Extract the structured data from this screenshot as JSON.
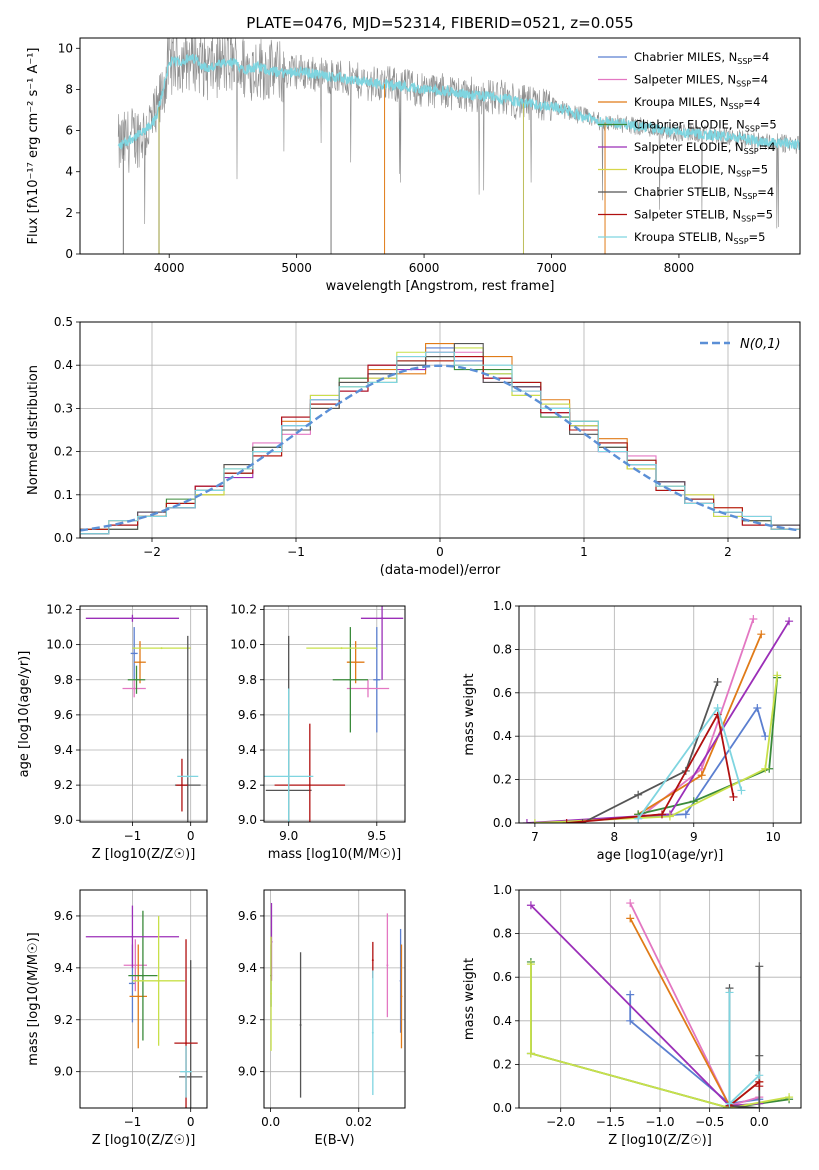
{
  "title": "PLATE=0476, MJD=52314, FIBERID=0521, z=0.055",
  "legend_entries": [
    {
      "label": "Chabrier MILES, N_SSP=4",
      "color": "#5b7fd0"
    },
    {
      "label": "Salpeter MILES, N_SSP=4",
      "color": "#e377c2"
    },
    {
      "label": "Kroupa MILES, N_SSP=4",
      "color": "#e07b18"
    },
    {
      "label": "Chabrier ELODIE, N_SSP=5",
      "color": "#3a8a3a"
    },
    {
      "label": "Salpeter ELODIE, N_SSP=4",
      "color": "#9b2fb8"
    },
    {
      "label": "Kroupa ELODIE, N_SSP=5",
      "color": "#d7d74a"
    },
    {
      "label": "Chabrier STELIB, N_SSP=4",
      "color": "#555555"
    },
    {
      "label": "Salpeter STELIB, N_SSP=5",
      "color": "#b01010"
    },
    {
      "label": "Kroupa STELIB, N_SSP=5",
      "color": "#7fd5e0"
    }
  ],
  "chart_data": [
    {
      "id": "spectrum",
      "type": "line",
      "title": "PLATE=0476, MJD=52314, FIBERID=0521, z=0.055",
      "xlabel": "wavelength [Angstrom, rest frame]",
      "ylabel": "Flux [fλ10⁻¹⁷ erg cm⁻² s⁻¹ A⁻¹]",
      "xlim": [
        3300,
        8950
      ],
      "ylim": [
        0,
        10.5
      ],
      "xticks": [
        4000,
        5000,
        6000,
        7000,
        8000
      ],
      "yticks": [
        0,
        2,
        4,
        6,
        8,
        10
      ],
      "data_color": "#8c8c8c",
      "model_color": "#7fd5e0",
      "x": [
        3600,
        3700,
        3800,
        3900,
        4000,
        4100,
        4200,
        4300,
        4400,
        4500,
        4600,
        4700,
        4800,
        4900,
        5000,
        5200,
        5400,
        5600,
        5800,
        6000,
        6200,
        6400,
        6600,
        6800,
        7000,
        7200,
        7400,
        7600,
        7800,
        8000,
        8200,
        8400,
        8600,
        8800,
        8950
      ],
      "y": [
        5.2,
        5.6,
        5.9,
        6.6,
        9.3,
        9.4,
        9.5,
        9.0,
        9.2,
        9.3,
        9.0,
        9.1,
        8.9,
        8.8,
        8.9,
        8.7,
        8.5,
        8.3,
        8.2,
        8.0,
        7.9,
        7.7,
        7.6,
        7.3,
        7.2,
        6.8,
        6.4,
        6.3,
        6.1,
        5.9,
        5.8,
        5.7,
        5.5,
        5.4,
        5.3
      ]
    },
    {
      "id": "residuals",
      "type": "line",
      "xlabel": "(data-model)/error",
      "ylabel": "Normed distribution",
      "xlim": [
        -2.5,
        2.5
      ],
      "ylim": [
        0,
        0.5
      ],
      "xticks": [
        -2,
        -1,
        0,
        1,
        2
      ],
      "yticks": [
        0.0,
        0.1,
        0.2,
        0.3,
        0.4,
        0.5
      ],
      "gauss_label": "N(0,1)",
      "gauss_color": "#5b8fd6",
      "series": [
        {
          "color": "#5b7fd0",
          "values": [
            0.02,
            0.03,
            0.05,
            0.08,
            0.11,
            0.16,
            0.2,
            0.26,
            0.32,
            0.35,
            0.38,
            0.4,
            0.44,
            0.41,
            0.38,
            0.35,
            0.3,
            0.26,
            0.22,
            0.17,
            0.12,
            0.09,
            0.06,
            0.04,
            0.03
          ]
        },
        {
          "color": "#e377c2",
          "values": [
            0.02,
            0.03,
            0.06,
            0.07,
            0.12,
            0.15,
            0.22,
            0.24,
            0.33,
            0.34,
            0.37,
            0.42,
            0.41,
            0.43,
            0.36,
            0.34,
            0.31,
            0.27,
            0.2,
            0.19,
            0.12,
            0.1,
            0.05,
            0.05,
            0.02
          ]
        },
        {
          "color": "#e07b18",
          "values": [
            0.01,
            0.04,
            0.05,
            0.08,
            0.1,
            0.17,
            0.19,
            0.27,
            0.3,
            0.36,
            0.39,
            0.38,
            0.45,
            0.4,
            0.42,
            0.33,
            0.32,
            0.25,
            0.23,
            0.16,
            0.13,
            0.08,
            0.07,
            0.03,
            0.03
          ]
        },
        {
          "color": "#3a8a3a",
          "values": [
            0.02,
            0.02,
            0.05,
            0.09,
            0.11,
            0.15,
            0.21,
            0.25,
            0.31,
            0.37,
            0.36,
            0.41,
            0.42,
            0.39,
            0.39,
            0.36,
            0.28,
            0.27,
            0.21,
            0.18,
            0.11,
            0.09,
            0.06,
            0.04,
            0.02
          ]
        },
        {
          "color": "#9b2fb8",
          "values": [
            0.01,
            0.03,
            0.06,
            0.07,
            0.12,
            0.14,
            0.2,
            0.28,
            0.32,
            0.34,
            0.4,
            0.39,
            0.43,
            0.42,
            0.37,
            0.35,
            0.29,
            0.26,
            0.2,
            0.17,
            0.13,
            0.08,
            0.06,
            0.03,
            0.03
          ]
        },
        {
          "color": "#c8e04a",
          "values": [
            0.02,
            0.03,
            0.05,
            0.08,
            0.1,
            0.16,
            0.2,
            0.25,
            0.33,
            0.35,
            0.37,
            0.43,
            0.41,
            0.44,
            0.38,
            0.33,
            0.31,
            0.26,
            0.22,
            0.16,
            0.12,
            0.1,
            0.05,
            0.04,
            0.02
          ]
        },
        {
          "color": "#555555",
          "values": [
            0.01,
            0.02,
            0.06,
            0.07,
            0.11,
            0.17,
            0.21,
            0.25,
            0.3,
            0.36,
            0.38,
            0.4,
            0.42,
            0.45,
            0.36,
            0.35,
            0.3,
            0.24,
            0.21,
            0.17,
            0.13,
            0.08,
            0.06,
            0.04,
            0.03
          ]
        },
        {
          "color": "#b01010",
          "values": [
            0.02,
            0.03,
            0.05,
            0.08,
            0.12,
            0.15,
            0.19,
            0.28,
            0.31,
            0.34,
            0.4,
            0.41,
            0.41,
            0.42,
            0.37,
            0.36,
            0.29,
            0.25,
            0.22,
            0.18,
            0.11,
            0.09,
            0.07,
            0.03,
            0.02
          ]
        },
        {
          "color": "#7fd5e0",
          "values": [
            0.01,
            0.04,
            0.05,
            0.07,
            0.11,
            0.16,
            0.2,
            0.26,
            0.32,
            0.35,
            0.36,
            0.42,
            0.43,
            0.4,
            0.4,
            0.34,
            0.3,
            0.27,
            0.2,
            0.17,
            0.12,
            0.08,
            0.06,
            0.05,
            0.02
          ]
        }
      ]
    },
    {
      "id": "age_vs_Z",
      "type": "scatter",
      "xlabel": "Z [log10(Z/Z☉)]",
      "ylabel": "age  [log10(age/yr)]",
      "xlim": [
        -1.9,
        0.28
      ],
      "ylim": [
        8.99,
        10.22
      ],
      "xticks": [
        -1,
        0
      ],
      "yticks": [
        9.0,
        9.2,
        9.4,
        9.6,
        9.8,
        10.0,
        10.2
      ],
      "points": [
        {
          "color": "#5b7fd0",
          "x": -0.97,
          "y": 9.95,
          "xerr": 0.06,
          "yerr": 0.15
        },
        {
          "color": "#e377c2",
          "x": -0.97,
          "y": 9.75,
          "xerr": 0.2,
          "yerr": 0.05
        },
        {
          "color": "#e07b18",
          "x": -0.87,
          "y": 9.9,
          "xerr": 0.1,
          "yerr": 0.12
        },
        {
          "color": "#3a8a3a",
          "x": -0.93,
          "y": 9.8,
          "xerr": 0.15,
          "yerr": 0.08
        },
        {
          "color": "#9b2fb8",
          "x": -1.0,
          "y": 10.15,
          "xerr": 0.8,
          "yerr": 0.02
        },
        {
          "color": "#c8e04a",
          "x": -0.5,
          "y": 9.98,
          "xerr": 0.5,
          "yerr": 0.0
        },
        {
          "color": "#555555",
          "x": -0.05,
          "y": 9.2,
          "xerr": 0.22,
          "yerr": 0.85
        },
        {
          "color": "#b01010",
          "x": -0.15,
          "y": 9.2,
          "xerr": 0.1,
          "yerr": 0.15
        },
        {
          "color": "#7fd5e0",
          "x": -0.05,
          "y": 9.25,
          "xerr": 0.18,
          "yerr": 0.0
        }
      ]
    },
    {
      "id": "age_vs_mass",
      "type": "scatter",
      "xlabel": "mass [log10(M/M☉)]",
      "ylabel": "",
      "xlim": [
        8.86,
        9.66
      ],
      "ylim": [
        8.99,
        10.22
      ],
      "xticks": [
        9.0,
        9.5
      ],
      "yticks": [
        9.0,
        9.2,
        9.4,
        9.6,
        9.8,
        10.0,
        10.2
      ],
      "points": [
        {
          "color": "#5b7fd0",
          "x": 9.5,
          "y": 9.8,
          "xerr": 0.02,
          "yerr": 0.3
        },
        {
          "color": "#e377c2",
          "x": 9.45,
          "y": 9.75,
          "xerr": 0.12,
          "yerr": 0.05
        },
        {
          "color": "#e07b18",
          "x": 9.38,
          "y": 9.9,
          "xerr": 0.05,
          "yerr": 0.12
        },
        {
          "color": "#3a8a3a",
          "x": 9.35,
          "y": 9.8,
          "xerr": 0.1,
          "yerr": 0.3
        },
        {
          "color": "#9b2fb8",
          "x": 9.53,
          "y": 10.15,
          "xerr": 0.12,
          "yerr": 0.35
        },
        {
          "color": "#c8e04a",
          "x": 9.3,
          "y": 9.98,
          "xerr": 0.2,
          "yerr": 0.0
        },
        {
          "color": "#555555",
          "x": 9.0,
          "y": 9.17,
          "xerr": 0.13,
          "yerr": 0.88
        },
        {
          "color": "#b01010",
          "x": 9.12,
          "y": 9.2,
          "xerr": 0.2,
          "yerr": 0.35
        },
        {
          "color": "#7fd5e0",
          "x": 9.0,
          "y": 9.25,
          "xerr": 0.14,
          "yerr": 0.5
        }
      ]
    },
    {
      "id": "massweight_vs_age",
      "type": "line",
      "xlabel": "age  [log10(age/yr)]",
      "ylabel": "mass weight",
      "xlim": [
        6.8,
        10.35
      ],
      "ylim": [
        0,
        1.0
      ],
      "xticks": [
        7,
        8,
        9,
        10
      ],
      "yticks": [
        0.0,
        0.2,
        0.4,
        0.6,
        0.8,
        1.0
      ],
      "series": [
        {
          "color": "#5b7fd0",
          "x": [
            8.3,
            8.9,
            9.8,
            9.9
          ],
          "y": [
            0.03,
            0.04,
            0.53,
            0.4
          ]
        },
        {
          "color": "#e377c2",
          "x": [
            8.3,
            9.1,
            9.75
          ],
          "y": [
            0.02,
            0.25,
            0.94
          ]
        },
        {
          "color": "#e07b18",
          "x": [
            8.3,
            9.1,
            9.85
          ],
          "y": [
            0.04,
            0.22,
            0.87
          ]
        },
        {
          "color": "#3a8a3a",
          "x": [
            8.3,
            9.0,
            9.95,
            10.05
          ],
          "y": [
            0.04,
            0.1,
            0.25,
            0.67
          ]
        },
        {
          "color": "#9b2fb8",
          "x": [
            6.9,
            8.7,
            10.2
          ],
          "y": [
            0.0,
            0.04,
            0.93
          ]
        },
        {
          "color": "#c8e04a",
          "x": [
            7.0,
            8.7,
            9.9,
            10.05
          ],
          "y": [
            0.0,
            0.03,
            0.25,
            0.68
          ]
        },
        {
          "color": "#555555",
          "x": [
            7.6,
            8.3,
            8.9,
            9.3
          ],
          "y": [
            0.0,
            0.13,
            0.24,
            0.65
          ]
        },
        {
          "color": "#b01010",
          "x": [
            7.4,
            8.6,
            9.3,
            9.5
          ],
          "y": [
            0.0,
            0.04,
            0.5,
            0.12
          ]
        },
        {
          "color": "#7fd5e0",
          "x": [
            8.3,
            9.3,
            9.6
          ],
          "y": [
            0.02,
            0.53,
            0.15
          ]
        }
      ]
    },
    {
      "id": "mass_vs_Z",
      "type": "scatter",
      "xlabel": "Z [log10(Z/Z☉)]",
      "ylabel": "mass [log10(M/M☉)]",
      "xlim": [
        -1.9,
        0.28
      ],
      "ylim": [
        8.86,
        9.7
      ],
      "xticks": [
        -1,
        0
      ],
      "yticks": [
        9.0,
        9.2,
        9.4,
        9.6
      ],
      "points": [
        {
          "color": "#5b7fd0",
          "x": -1.0,
          "y": 9.34,
          "xerr": 0.06,
          "yerr": 0.15
        },
        {
          "color": "#e377c2",
          "x": -0.95,
          "y": 9.41,
          "xerr": 0.2,
          "yerr": 0.1
        },
        {
          "color": "#e07b18",
          "x": -0.9,
          "y": 9.29,
          "xerr": 0.15,
          "yerr": 0.2
        },
        {
          "color": "#3a8a3a",
          "x": -0.82,
          "y": 9.37,
          "xerr": 0.25,
          "yerr": 0.25
        },
        {
          "color": "#9b2fb8",
          "x": -1.0,
          "y": 9.52,
          "xerr": 0.8,
          "yerr": 0.12
        },
        {
          "color": "#c8e04a",
          "x": -0.55,
          "y": 9.35,
          "xerr": 0.45,
          "yerr": 0.25
        },
        {
          "color": "#555555",
          "x": 0.0,
          "y": 8.98,
          "xerr": 0.2,
          "yerr": 0.45
        },
        {
          "color": "#b01010",
          "x": -0.08,
          "y": 9.11,
          "xerr": 0.2,
          "yerr": 0.4
        },
        {
          "color": "#7fd5e0",
          "x": -0.08,
          "y": 9.0,
          "xerr": 0.1,
          "yerr": 0.1
        }
      ]
    },
    {
      "id": "mass_vs_ebv",
      "type": "scatter",
      "xlabel": "E(B-V)",
      "ylabel": "",
      "xlim": [
        -0.0015,
        0.0305
      ],
      "ylim": [
        8.86,
        9.7
      ],
      "xticks": [
        0.0,
        0.02
      ],
      "yticks": [
        9.0,
        9.2,
        9.4,
        9.6
      ],
      "points": [
        {
          "color": "#5b7fd0",
          "x": 0.0295,
          "y": 9.35,
          "xerr": 0.0,
          "yerr": 0.2
        },
        {
          "color": "#e377c2",
          "x": 0.0265,
          "y": 9.41,
          "xerr": 0.0,
          "yerr": 0.2
        },
        {
          "color": "#e07b18",
          "x": 0.0297,
          "y": 9.29,
          "xerr": 0.0,
          "yerr": 0.2
        },
        {
          "color": "#3a8a3a",
          "x": 0.0001,
          "y": 9.37,
          "xerr": 0.0,
          "yerr": 0.12
        },
        {
          "color": "#9b2fb8",
          "x": 0.0002,
          "y": 9.5,
          "xerr": 0.0,
          "yerr": 0.15
        },
        {
          "color": "#c8e04a",
          "x": 0.0001,
          "y": 9.3,
          "xerr": 0.0,
          "yerr": 0.22
        },
        {
          "color": "#555555",
          "x": 0.0068,
          "y": 9.18,
          "xerr": 0.0,
          "yerr": 0.28
        },
        {
          "color": "#b01010",
          "x": 0.0232,
          "y": 9.43,
          "xerr": 0.0,
          "yerr": 0.07
        },
        {
          "color": "#7fd5e0",
          "x": 0.0232,
          "y": 9.15,
          "xerr": 0.0,
          "yerr": 0.24
        }
      ]
    },
    {
      "id": "massweight_vs_Z",
      "type": "line",
      "xlabel": "Z [log10(Z/Z☉)]",
      "ylabel": "mass weight",
      "xlim": [
        -2.42,
        0.42
      ],
      "ylim": [
        0,
        1.0
      ],
      "xticks": [
        -2.0,
        -1.5,
        -1.0,
        -0.5,
        0.0
      ],
      "yticks": [
        0.0,
        0.2,
        0.4,
        0.6,
        0.8,
        1.0
      ],
      "series": [
        {
          "color": "#5b7fd0",
          "x": [
            -1.3,
            -1.3,
            -0.3,
            0.0
          ],
          "y": [
            0.52,
            0.4,
            0.02,
            0.04
          ]
        },
        {
          "color": "#e377c2",
          "x": [
            -1.3,
            -0.3,
            0.0
          ],
          "y": [
            0.94,
            0.01,
            0.05
          ]
        },
        {
          "color": "#e07b18",
          "x": [
            -1.3,
            -0.3,
            0.0
          ],
          "y": [
            0.87,
            0.01,
            0.12
          ]
        },
        {
          "color": "#3a8a3a",
          "x": [
            -2.3,
            -2.3,
            -0.3,
            0.3
          ],
          "y": [
            0.67,
            0.25,
            0.0,
            0.04
          ]
        },
        {
          "color": "#9b2fb8",
          "x": [
            -2.3,
            -0.3,
            0.0
          ],
          "y": [
            0.93,
            0.01,
            0.02
          ]
        },
        {
          "color": "#c8e04a",
          "x": [
            -2.3,
            -2.3,
            -0.3,
            0.3
          ],
          "y": [
            0.66,
            0.25,
            0.0,
            0.05
          ]
        },
        {
          "color": "#555555",
          "x": [
            -0.3,
            -0.3,
            0.0,
            0.0,
            0.0
          ],
          "y": [
            0.55,
            0.01,
            0.0,
            0.24,
            0.65
          ]
        },
        {
          "color": "#b01010",
          "x": [
            -0.3,
            0.0,
            0.0
          ],
          "y": [
            0.01,
            0.12,
            0.1
          ]
        },
        {
          "color": "#7fd5e0",
          "x": [
            -0.3,
            -0.3,
            0.0
          ],
          "y": [
            0.53,
            0.02,
            0.15
          ]
        }
      ]
    }
  ]
}
